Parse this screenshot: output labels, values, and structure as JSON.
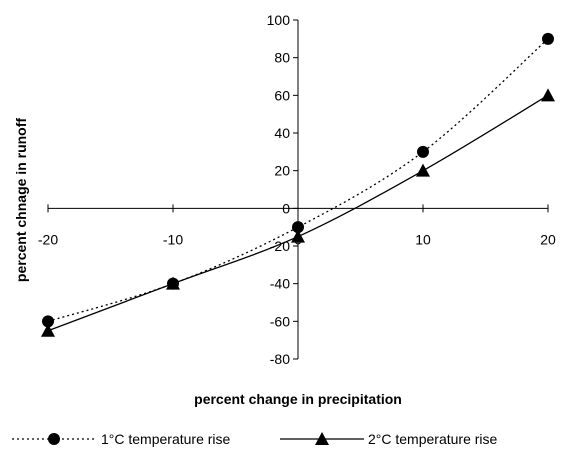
{
  "chart_data": {
    "type": "line",
    "title": "",
    "xlabel": "percent change in precipitation",
    "ylabel": "percent chnage in runoff",
    "x": [
      -20,
      -10,
      0,
      10,
      20
    ],
    "xlim": [
      -20,
      20
    ],
    "ylim": [
      -80,
      100
    ],
    "x_ticks": [
      -20,
      -10,
      0,
      10,
      20
    ],
    "y_ticks": [
      100,
      80,
      60,
      40,
      20,
      0,
      -20,
      -40,
      -60,
      -80
    ],
    "grid": false,
    "legend_position": "bottom",
    "series": [
      {
        "name": "1°C temperature rise",
        "values": [
          -60,
          -40,
          -10,
          30,
          90
        ],
        "line_style": "dotted",
        "marker": "circle",
        "color": "#000000"
      },
      {
        "name": "2°C temperature rise",
        "values": [
          -65,
          -40,
          -15,
          20,
          60
        ],
        "line_style": "solid",
        "marker": "triangle",
        "color": "#000000"
      }
    ]
  }
}
